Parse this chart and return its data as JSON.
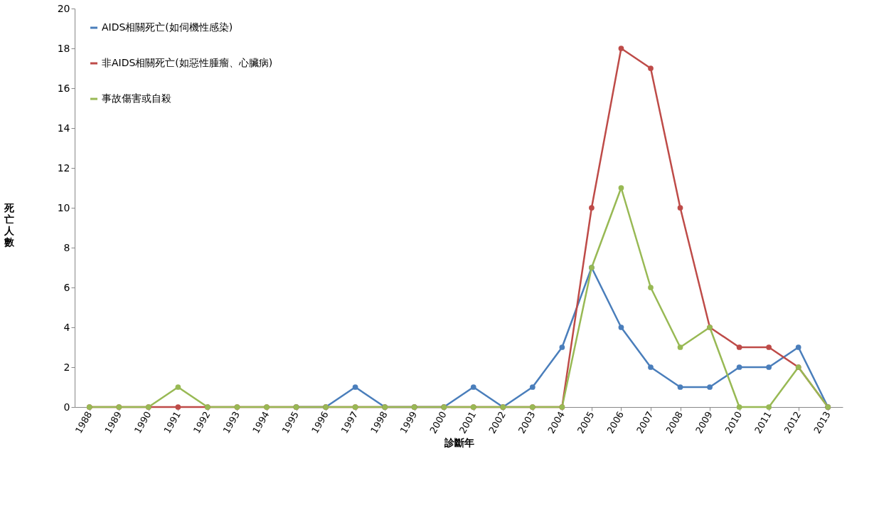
{
  "chart_data": {
    "type": "line",
    "xlabel": "診斷年",
    "ylabel": "死亡人數",
    "categories": [
      "1988",
      "1989",
      "1990",
      "1991",
      "1992",
      "1993",
      "1994",
      "1995",
      "1996",
      "1997",
      "1998",
      "1999",
      "2000",
      "2001",
      "2002",
      "2003",
      "2004",
      "2005",
      "2006",
      "2007",
      "2008",
      "2009",
      "2010",
      "2011",
      "2012",
      "2013"
    ],
    "series": [
      {
        "name": "AIDS相關死亡(如伺機性感染)",
        "color": "#4a7ebb",
        "values": [
          null,
          null,
          null,
          null,
          null,
          null,
          null,
          0,
          0,
          1,
          0,
          0,
          0,
          1,
          0,
          1,
          3,
          7,
          4,
          2,
          1,
          1,
          2,
          2,
          3,
          0
        ]
      },
      {
        "name": "非AIDS相關死亡(如惡性腫瘤、心臟病)",
        "color": "#be4b48",
        "values": [
          0,
          0,
          0,
          0,
          0,
          0,
          0,
          0,
          0,
          0,
          0,
          0,
          0,
          0,
          0,
          0,
          0,
          10,
          18,
          17,
          10,
          4,
          3,
          3,
          2,
          0
        ]
      },
      {
        "name": "事故傷害或自殺",
        "color": "#98b954",
        "values": [
          0,
          0,
          0,
          1,
          0,
          0,
          0,
          0,
          0,
          0,
          0,
          0,
          0,
          0,
          0,
          0,
          0,
          7,
          11,
          6,
          3,
          4,
          0,
          0,
          2,
          0
        ]
      }
    ],
    "ylim": [
      0,
      20
    ],
    "yticks": [
      0,
      2,
      4,
      6,
      8,
      10,
      12,
      14,
      16,
      18,
      20
    ],
    "grid": false,
    "legend": "top left",
    "marker": "circle",
    "line_style": "solid"
  }
}
